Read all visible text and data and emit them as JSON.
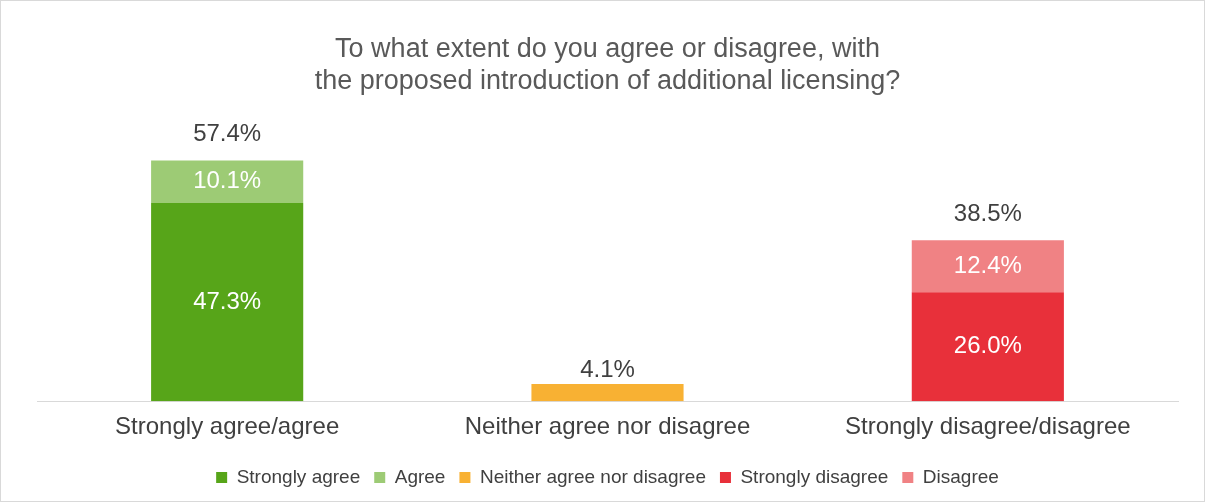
{
  "chart_data": {
    "type": "bar",
    "title": "To what extent do you agree or disagree, with the proposed introduction of additional licensing?",
    "categories": [
      "Strongly agree/agree",
      "Neither agree nor disagree",
      "Strongly disagree/disagree"
    ],
    "stacked": true,
    "grid": false,
    "legend": "bottom",
    "series": [
      {
        "name": "Strongly agree",
        "color": "#57a519",
        "values": [
          47.3,
          null,
          null
        ],
        "value_labels": [
          "47.3%",
          null,
          null
        ]
      },
      {
        "name": "Agree",
        "color": "#9dcb75",
        "values": [
          10.1,
          null,
          null
        ],
        "value_labels": [
          "10.1%",
          null,
          null
        ]
      },
      {
        "name": "Neither agree nor disagree",
        "color": "#f8b133",
        "values": [
          null,
          4.1,
          null
        ],
        "value_labels": [
          null,
          "4.1%",
          null
        ]
      },
      {
        "name": "Strongly disagree",
        "color": "#e8303a",
        "values": [
          null,
          null,
          26.0
        ],
        "value_labels": [
          null,
          null,
          "26.0%"
        ]
      },
      {
        "name": "Disagree",
        "color": "#f08284",
        "values": [
          null,
          null,
          12.4
        ],
        "value_labels": [
          null,
          null,
          "12.4%"
        ]
      }
    ],
    "totals": [
      "57.4%",
      null,
      "38.5%"
    ]
  }
}
